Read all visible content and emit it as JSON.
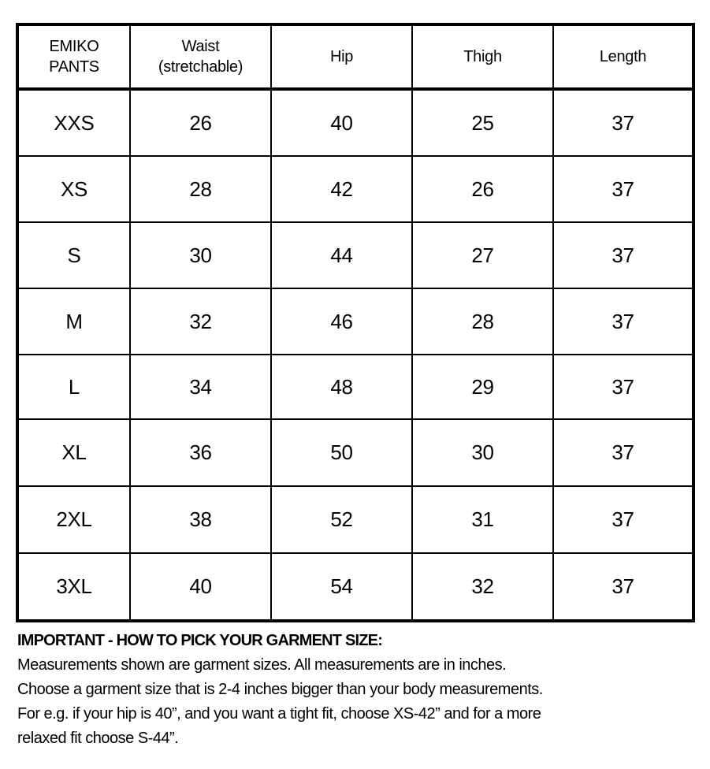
{
  "table": {
    "headers": [
      "EMIKO\nPANTS",
      "Waist\n(stretchable)",
      "Hip",
      "Thigh",
      "Length"
    ],
    "rows": [
      [
        "XXS",
        "26",
        "40",
        "25",
        "37"
      ],
      [
        "XS",
        "28",
        "42",
        "26",
        "37"
      ],
      [
        "S",
        "30",
        "44",
        "27",
        "37"
      ],
      [
        "M",
        "32",
        "46",
        "28",
        "37"
      ],
      [
        "L",
        "34",
        "48",
        "29",
        "37"
      ],
      [
        "XL",
        "36",
        "50",
        "30",
        "37"
      ],
      [
        "2XL",
        "38",
        "52",
        "31",
        "37"
      ],
      [
        "3XL",
        "40",
        "54",
        "32",
        "37"
      ]
    ]
  },
  "notes": {
    "heading": "IMPORTANT - HOW TO PICK YOUR GARMENT SIZE:",
    "lines": [
      "Measurements shown are garment sizes. All measurements are in inches.",
      "Choose a garment size that is 2-4 inches bigger than your body measurements.",
      "For e.g. if your hip is 40”, and you want a tight fit, choose XS-42” and for a more",
      "relaxed fit choose S-44”."
    ]
  }
}
